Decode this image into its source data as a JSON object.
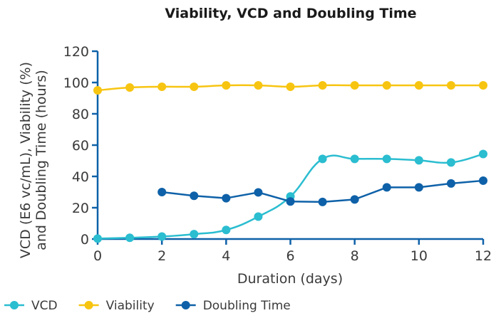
{
  "chart_data": {
    "type": "line",
    "title": "Viability, VCD and Doubling Time",
    "xlabel": "Duration (days)",
    "ylabel_line1": "VCD (E6 vc/mL), Viability (%)",
    "ylabel_line2": "and Doubling Time (hours)",
    "xlim": [
      0,
      12
    ],
    "ylim": [
      0,
      120
    ],
    "xticks": [
      0,
      2,
      4,
      6,
      8,
      10,
      12
    ],
    "yticks": [
      0,
      20,
      40,
      60,
      80,
      100,
      120
    ],
    "grid": false,
    "legend_position": "bottom-left",
    "series": [
      {
        "name": "VCD",
        "color": "#2bbdd0",
        "smooth": true,
        "points": [
          [
            0,
            0.3
          ],
          [
            1,
            0.8
          ],
          [
            2,
            1.6
          ],
          [
            3,
            3.1
          ],
          [
            4,
            5.8
          ],
          [
            5,
            14.3
          ],
          [
            6,
            27.2
          ],
          [
            7,
            51.2
          ],
          [
            8,
            51.2
          ],
          [
            9,
            51.2
          ],
          [
            10,
            50.3
          ],
          [
            11,
            48.9
          ],
          [
            12,
            54.3
          ]
        ]
      },
      {
        "name": "Viability",
        "color": "#f7c511",
        "smooth": true,
        "points": [
          [
            0,
            95.0
          ],
          [
            1,
            96.8
          ],
          [
            2,
            97.3
          ],
          [
            3,
            97.3
          ],
          [
            4,
            98.2
          ],
          [
            5,
            98.2
          ],
          [
            6,
            97.3
          ],
          [
            7,
            98.2
          ],
          [
            8,
            98.2
          ],
          [
            9,
            98.2
          ],
          [
            10,
            98.2
          ],
          [
            11,
            98.2
          ],
          [
            12,
            98.2
          ]
        ]
      },
      {
        "name": "Doubling Time",
        "color": "#0e61a8",
        "smooth": false,
        "points": [
          [
            2,
            30.0
          ],
          [
            3,
            27.6
          ],
          [
            4,
            26.1
          ],
          [
            5,
            29.8
          ],
          [
            6,
            24.0
          ],
          [
            7,
            23.7
          ],
          [
            8,
            25.3
          ],
          [
            9,
            33.0
          ],
          [
            10,
            33.0
          ],
          [
            11,
            35.5
          ],
          [
            12,
            37.3
          ]
        ]
      }
    ]
  }
}
